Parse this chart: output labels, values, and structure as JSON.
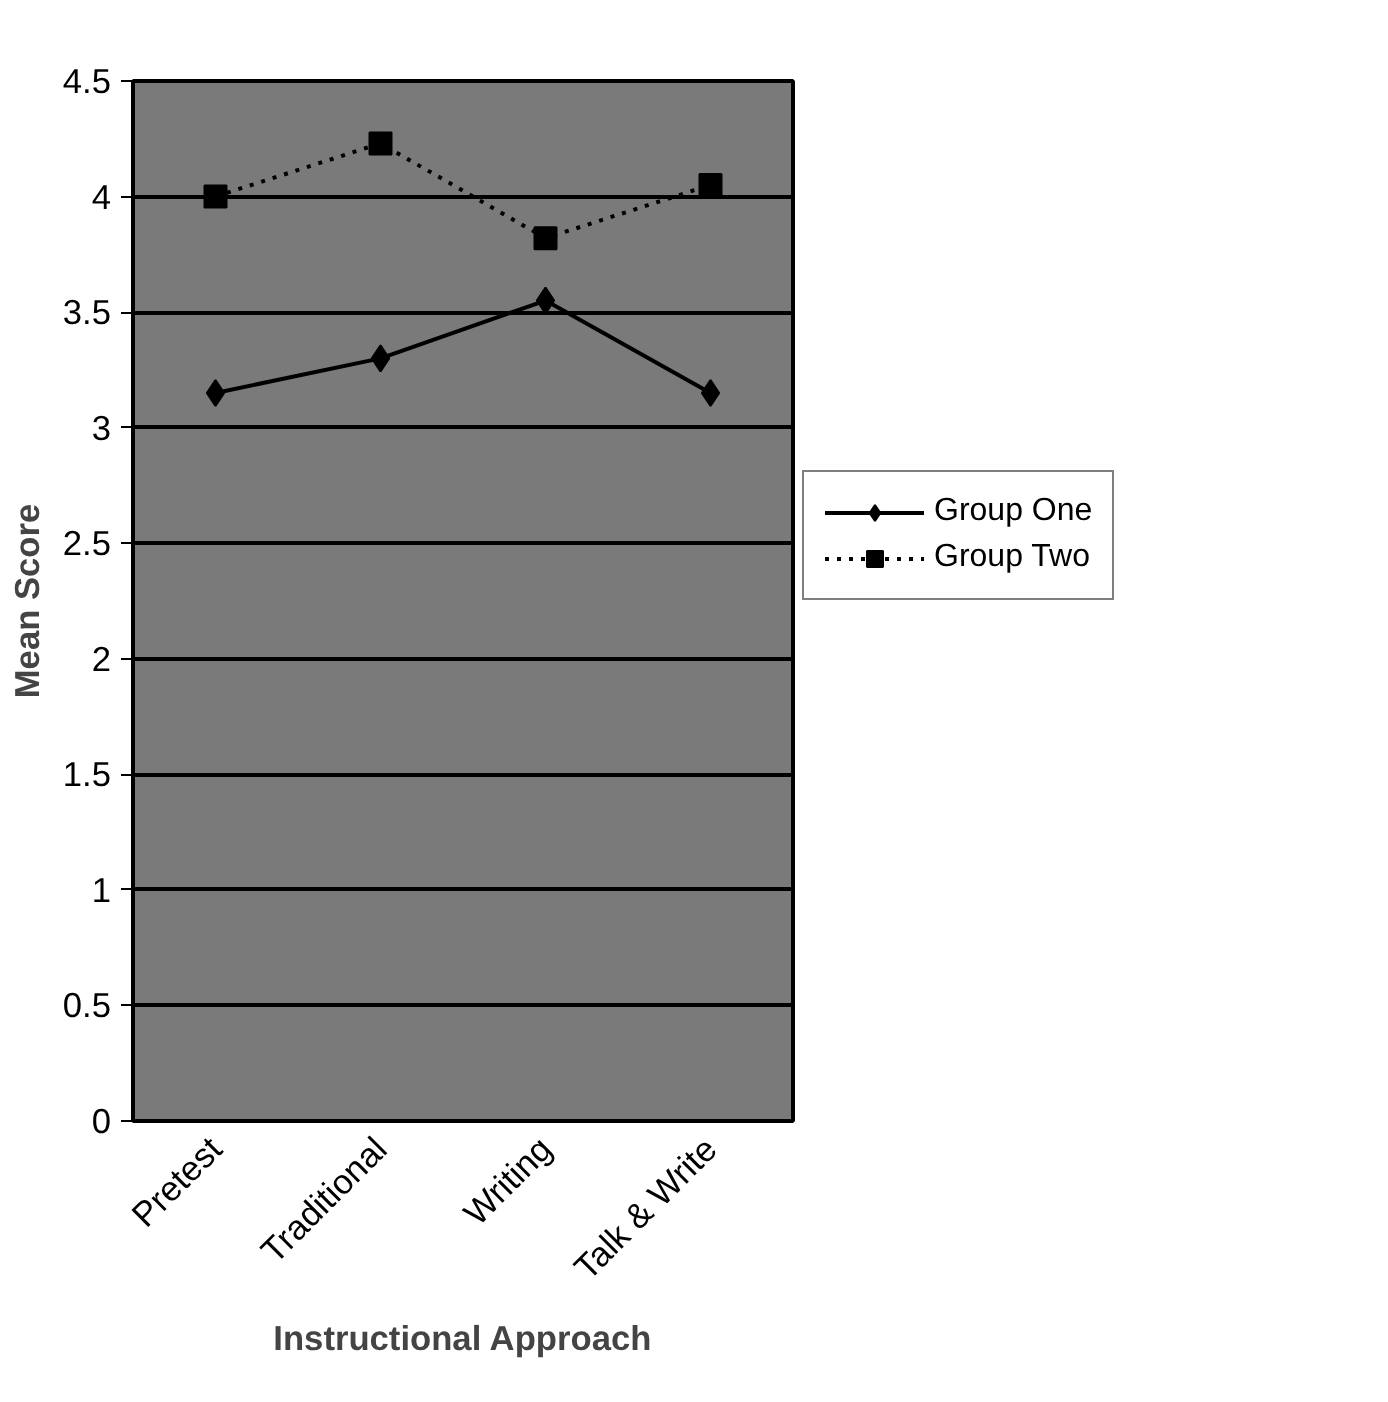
{
  "chart_data": {
    "type": "line",
    "xlabel": "Instructional Approach",
    "ylabel": "Mean Score",
    "categories": [
      "Pretest",
      "Traditional",
      "Writing",
      "Talk & Write"
    ],
    "series": [
      {
        "name": "Group One",
        "color": "#000000",
        "values": [
          3.15,
          3.3,
          3.55,
          3.15
        ],
        "marker": "diamond",
        "line_style": "solid"
      },
      {
        "name": "Group Two",
        "color": "#000000",
        "values": [
          4.0,
          4.23,
          3.82,
          4.05
        ],
        "marker": "square",
        "line_style": "dotted"
      }
    ],
    "ylim": [
      0,
      4.5
    ],
    "yticks": [
      0,
      0.5,
      1,
      1.5,
      2,
      2.5,
      3,
      3.5,
      4,
      4.5
    ],
    "grid": "y",
    "legend": "right"
  }
}
